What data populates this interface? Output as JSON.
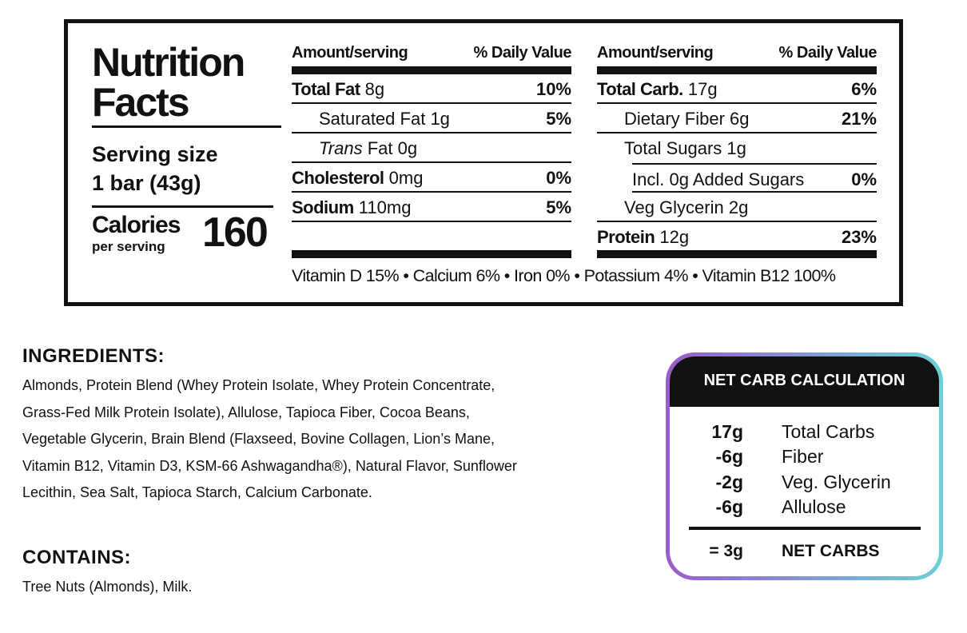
{
  "nutrition_facts": {
    "title": "Nutrition Facts",
    "serving_size_label": "Serving size",
    "serving_size": "1 bar (43g)",
    "calories_label": "Calories",
    "calories_sub": "per serving",
    "calories": "160",
    "columns": [
      {
        "header_amount": "Amount/serving",
        "header_dv": "% Daily Value",
        "rows": [
          {
            "label": "Total Fat",
            "amount": "8g",
            "dv": "10%"
          },
          {
            "label": "Saturated Fat",
            "amount": "1g",
            "dv": "5%"
          },
          {
            "label_italic": "Trans",
            "label": "Fat",
            "amount": "0g"
          },
          {
            "label": "Cholesterol",
            "amount": "0mg",
            "dv": "0%"
          },
          {
            "label": "Sodium",
            "amount": "110mg",
            "dv": "5%"
          }
        ]
      },
      {
        "header_amount": "Amount/serving",
        "header_dv": "% Daily Value",
        "rows": [
          {
            "label": "Total Carb.",
            "amount": "17g",
            "dv": "6%"
          },
          {
            "label": "Dietary Fiber",
            "amount": "6g",
            "dv": "21%"
          },
          {
            "label": "Total Sugars",
            "amount": "1g"
          },
          {
            "label": "Incl. 0g Added Sugars",
            "dv": "0%"
          },
          {
            "label": "Veg Glycerin",
            "amount": "2g"
          },
          {
            "label": "Protein",
            "amount": "12g",
            "dv": "23%"
          }
        ]
      }
    ],
    "vitamins": "Vitamin D 15% • Calcium 6% • Iron 0% • Potassium 4% • Vitamin B12 100%"
  },
  "ingredients": {
    "heading": "INGREDIENTS:",
    "text": "Almonds, Protein Blend (Whey Protein Isolate, Whey Protein Concentrate, Grass-Fed Milk Protein Isolate), Allulose, Tapioca Fiber, Cocoa Beans, Vegetable Glycerin, Brain Blend (Flaxseed, Bovine Collagen, Lion’s Mane, Vitamin B12, Vitamin D3, KSM-66 Ashwagandha®), Natural Flavor, Sunflower Lecithin, Sea Salt, Tapioca Starch, Calcium Carbonate."
  },
  "contains": {
    "heading": "CONTAINS:",
    "text": "Tree Nuts (Almonds), Milk."
  },
  "net_carb": {
    "title": "NET CARB CALCULATION",
    "rows": [
      {
        "amount": "17g",
        "label": "Total Carbs"
      },
      {
        "amount": "-6g",
        "label": "Fiber"
      },
      {
        "amount": "-2g",
        "label": "Veg. Glycerin"
      },
      {
        "amount": "-6g",
        "label": "Allulose"
      }
    ],
    "result": {
      "amount": "= 3g",
      "label": "NET CARBS"
    }
  }
}
